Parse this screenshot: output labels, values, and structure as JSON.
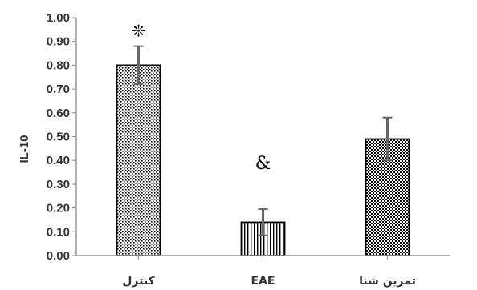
{
  "chart_data": {
    "type": "bar",
    "categories": [
      "کنترل",
      "EAE",
      "تمرین شنا"
    ],
    "values": [
      0.8,
      0.14,
      0.49
    ],
    "errors": [
      0.08,
      0.055,
      0.09
    ],
    "annotations": [
      "❊",
      "&",
      ""
    ],
    "ylabel": "IL-10",
    "xlabel": "",
    "ylim": [
      0,
      1.0
    ],
    "yticks": [
      "0.00",
      "0.10",
      "0.20",
      "0.30",
      "0.40",
      "0.50",
      "0.60",
      "0.70",
      "0.80",
      "0.90",
      "1.00"
    ],
    "bar_patterns": [
      "dense-dots",
      "vertical-lines",
      "checker"
    ],
    "colors": {
      "bar_fill": "#000000",
      "bar_bg": "#ffffff",
      "axis": "#999999",
      "error_bar": "#666666",
      "text": "#333333"
    }
  }
}
